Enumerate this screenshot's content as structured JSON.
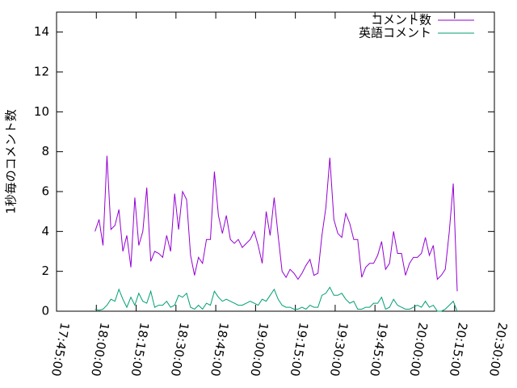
{
  "chart_data": {
    "type": "line",
    "ylabel": "1秒毎のコメント数",
    "ylim": [
      0,
      15
    ],
    "yticks": [
      0,
      2,
      4,
      6,
      8,
      10,
      12,
      14
    ],
    "xlim": [
      "17:45:00",
      "20:30:00"
    ],
    "xticks": [
      "17:45:00",
      "18:00:00",
      "18:15:00",
      "18:30:00",
      "18:45:00",
      "19:00:00",
      "19:15:00",
      "19:30:00",
      "19:45:00",
      "20:00:00",
      "20:15:00",
      "20:30:00"
    ],
    "legend": "top-right",
    "x": [
      "17:59:30",
      "18:01:00",
      "18:02:30",
      "18:04:00",
      "18:05:30",
      "18:07:00",
      "18:08:30",
      "18:10:00",
      "18:11:30",
      "18:13:00",
      "18:14:30",
      "18:16:00",
      "18:17:30",
      "18:19:00",
      "18:20:30",
      "18:22:00",
      "18:23:30",
      "18:25:00",
      "18:26:30",
      "18:28:00",
      "18:29:30",
      "18:31:00",
      "18:32:30",
      "18:34:00",
      "18:35:30",
      "18:37:00",
      "18:38:30",
      "18:40:00",
      "18:41:30",
      "18:43:00",
      "18:44:30",
      "18:46:00",
      "18:47:30",
      "18:49:00",
      "18:50:30",
      "18:52:00",
      "18:53:30",
      "18:55:00",
      "18:56:30",
      "18:58:00",
      "18:59:30",
      "19:01:00",
      "19:02:30",
      "19:04:00",
      "19:05:30",
      "19:07:00",
      "19:08:30",
      "19:10:00",
      "19:11:30",
      "19:13:00",
      "19:14:30",
      "19:16:00",
      "19:17:30",
      "19:19:00",
      "19:20:30",
      "19:22:00",
      "19:23:30",
      "19:25:00",
      "19:26:30",
      "19:28:00",
      "19:29:30",
      "19:31:00",
      "19:32:30",
      "19:34:00",
      "19:35:30",
      "19:37:00",
      "19:38:30",
      "19:40:00",
      "19:41:30",
      "19:43:00",
      "19:44:30",
      "19:46:00",
      "19:47:30",
      "19:49:00",
      "19:50:30",
      "19:52:00",
      "19:53:30",
      "19:55:00",
      "19:56:30",
      "19:58:00",
      "19:59:30",
      "20:01:00",
      "20:02:30",
      "20:04:00",
      "20:05:30",
      "20:07:00",
      "20:08:30",
      "20:10:00",
      "20:11:30",
      "20:13:00",
      "20:14:30",
      "20:16:00"
    ],
    "series": [
      {
        "name": "コメント数",
        "color": "#9400d3",
        "values": [
          4.0,
          4.6,
          3.3,
          7.8,
          4.1,
          4.3,
          5.1,
          3.0,
          3.8,
          2.2,
          5.7,
          3.3,
          4.0,
          6.2,
          2.5,
          3.0,
          2.9,
          2.7,
          3.8,
          3.0,
          5.9,
          4.1,
          6.0,
          5.6,
          2.8,
          1.8,
          2.7,
          2.4,
          3.6,
          3.6,
          7.0,
          4.8,
          3.9,
          4.8,
          3.6,
          3.4,
          3.6,
          3.2,
          3.4,
          3.6,
          4.0,
          3.3,
          2.4,
          5.0,
          3.8,
          5.7,
          3.8,
          2.0,
          1.7,
          2.1,
          1.9,
          1.6,
          1.9,
          2.3,
          2.6,
          1.8,
          1.9,
          3.8,
          5.2,
          7.7,
          4.6,
          3.9,
          3.7,
          4.9,
          4.4,
          3.6,
          3.6,
          1.7,
          2.2,
          2.4,
          2.4,
          2.8,
          3.5,
          2.1,
          2.4,
          4.0,
          2.9,
          2.9,
          1.8,
          2.4,
          2.7,
          2.7,
          2.9,
          3.7,
          2.8,
          3.3,
          1.6,
          1.8,
          2.1,
          4.0,
          6.4,
          1.0
        ]
      },
      {
        "name": "英語コメント",
        "color": "#009e73",
        "values": [
          0.1,
          0.05,
          0.1,
          0.3,
          0.6,
          0.5,
          1.1,
          0.6,
          0.2,
          0.7,
          0.3,
          0.9,
          0.5,
          0.4,
          1.0,
          0.2,
          0.3,
          0.3,
          0.5,
          0.2,
          0.3,
          0.8,
          0.7,
          0.9,
          0.2,
          0.1,
          0.3,
          0.1,
          0.4,
          0.3,
          1.0,
          0.7,
          0.5,
          0.6,
          0.5,
          0.4,
          0.3,
          0.3,
          0.4,
          0.5,
          0.4,
          0.3,
          0.6,
          0.5,
          0.8,
          1.1,
          0.6,
          0.3,
          0.2,
          0.2,
          0.1,
          0.1,
          0.2,
          0.1,
          0.3,
          0.2,
          0.2,
          0.8,
          0.9,
          1.2,
          0.8,
          0.8,
          0.9,
          0.6,
          0.4,
          0.5,
          0.1,
          0.1,
          0.2,
          0.2,
          0.4,
          0.4,
          0.7,
          0.1,
          0.2,
          0.6,
          0.3,
          0.2,
          0.1,
          0.1,
          0.2,
          0.3,
          0.2,
          0.5,
          0.2,
          0.3,
          0.0,
          0.0,
          0.1,
          0.3,
          0.5,
          0.0
        ]
      }
    ]
  }
}
